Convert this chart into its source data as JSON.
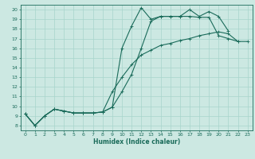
{
  "xlabel": "Humidex (Indice chaleur)",
  "xlim": [
    -0.5,
    23.5
  ],
  "ylim": [
    7.5,
    20.5
  ],
  "xticks": [
    0,
    1,
    2,
    3,
    4,
    5,
    6,
    7,
    8,
    9,
    10,
    11,
    12,
    13,
    14,
    15,
    16,
    17,
    18,
    19,
    20,
    21,
    22,
    23
  ],
  "yticks": [
    8,
    9,
    10,
    11,
    12,
    13,
    14,
    15,
    16,
    17,
    18,
    19,
    20
  ],
  "bg_color": "#cce8e2",
  "grid_color": "#a8d4cc",
  "line_color": "#1a6b5a",
  "line1_x": [
    0,
    1,
    2,
    3,
    4,
    5,
    6,
    7,
    8,
    9,
    10,
    11,
    12,
    13,
    14,
    15,
    16,
    17,
    18,
    19,
    20,
    21
  ],
  "line1_y": [
    9.2,
    8.0,
    9.0,
    9.7,
    9.5,
    9.3,
    9.3,
    9.3,
    9.4,
    9.9,
    16.0,
    18.3,
    20.2,
    19.0,
    19.3,
    19.3,
    19.3,
    20.0,
    19.3,
    19.8,
    19.3,
    17.8
  ],
  "line2_x": [
    0,
    1,
    2,
    3,
    4,
    5,
    6,
    7,
    8,
    9,
    10,
    11,
    12,
    13,
    14,
    15,
    16,
    17,
    18,
    19,
    20,
    21,
    22
  ],
  "line2_y": [
    9.2,
    8.0,
    9.0,
    9.7,
    9.5,
    9.3,
    9.3,
    9.3,
    9.4,
    9.9,
    11.5,
    13.3,
    16.0,
    18.8,
    19.3,
    19.3,
    19.3,
    19.3,
    19.2,
    19.2,
    17.3,
    17.0,
    16.7
  ],
  "line3_x": [
    0,
    1,
    2,
    3,
    4,
    5,
    6,
    7,
    8,
    9,
    10,
    11,
    12,
    13,
    14,
    15,
    16,
    17,
    18,
    19,
    20,
    21,
    22,
    23
  ],
  "line3_y": [
    9.2,
    8.0,
    9.0,
    9.7,
    9.5,
    9.3,
    9.3,
    9.3,
    9.4,
    11.5,
    13.0,
    14.3,
    15.3,
    15.8,
    16.3,
    16.5,
    16.8,
    17.0,
    17.3,
    17.5,
    17.7,
    17.5,
    16.7,
    16.7
  ]
}
